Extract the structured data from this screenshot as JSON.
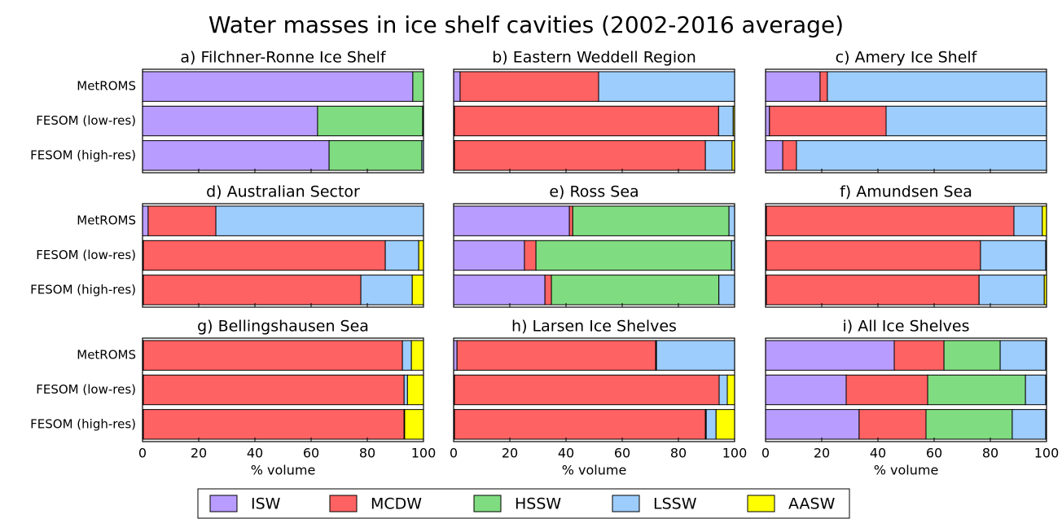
{
  "title": "Water masses in ice shelf cavities (2002-2016 average)",
  "categories": [
    "MetROMS",
    "FESOM (low-res)",
    "FESOM (high-res)"
  ],
  "x_label": "% volume",
  "xlim": [
    0,
    100
  ],
  "xticks": [
    0,
    20,
    40,
    60,
    80,
    100
  ],
  "legend": [
    {
      "name": "ISW",
      "color": "#b99cff"
    },
    {
      "name": "MCDW",
      "color": "#ff6262"
    },
    {
      "name": "HSSW",
      "color": "#80dc80"
    },
    {
      "name": "LSSW",
      "color": "#9dcdfd"
    },
    {
      "name": "AASW",
      "color": "#ffff00"
    }
  ],
  "chart_data": [
    {
      "type": "bar",
      "title": "a) Filchner-Ronne Ice Shelf",
      "values": [
        [
          96.2,
          0,
          3.8,
          0,
          0
        ],
        [
          62.3,
          0,
          37.4,
          0.3,
          0
        ],
        [
          66.4,
          0,
          33,
          0.6,
          0
        ]
      ]
    },
    {
      "type": "bar",
      "title": "b) Eastern Weddell Region",
      "values": [
        [
          2.3,
          49.3,
          0,
          48.4,
          0
        ],
        [
          0.3,
          94,
          0,
          5.2,
          0.5
        ],
        [
          0.3,
          89.3,
          0,
          9.5,
          0.9
        ]
      ]
    },
    {
      "type": "bar",
      "title": "c) Amery Ice Shelf",
      "values": [
        [
          19.4,
          2.6,
          0,
          78,
          0
        ],
        [
          1.4,
          41.5,
          0,
          57.1,
          0
        ],
        [
          6.1,
          4.9,
          0,
          89,
          0
        ]
      ]
    },
    {
      "type": "bar",
      "title": "d) Australian Sector",
      "values": [
        [
          2,
          24.1,
          0,
          73.9,
          0
        ],
        [
          0.3,
          86.1,
          0,
          11.9,
          1.7
        ],
        [
          0.3,
          77.4,
          0,
          18.3,
          4
        ]
      ]
    },
    {
      "type": "bar",
      "title": "e) Ross Sea",
      "values": [
        [
          41.2,
          1.2,
          55.6,
          2,
          0
        ],
        [
          25.2,
          4.1,
          69.6,
          1.1,
          0
        ],
        [
          32.5,
          2.3,
          59.6,
          5.6,
          0
        ]
      ]
    },
    {
      "type": "bar",
      "title": "f) Amundsen Sea",
      "values": [
        [
          0.3,
          88.1,
          0,
          10.1,
          1.5
        ],
        [
          0.3,
          76.2,
          0,
          23.2,
          0.3
        ],
        [
          0.3,
          75.7,
          0,
          23.2,
          0.8
        ]
      ]
    },
    {
      "type": "bar",
      "title": "g) Bellingshausen Sea",
      "values": [
        [
          0.3,
          92.2,
          0,
          3.2,
          4.3
        ],
        [
          0.3,
          92.8,
          0,
          1.2,
          5.7
        ],
        [
          0.3,
          92.8,
          0,
          0.2,
          6.7
        ]
      ]
    },
    {
      "type": "bar",
      "title": "h) Larsen Ice Shelves",
      "values": [
        [
          1.2,
          70.7,
          0.3,
          27.8,
          0
        ],
        [
          0.3,
          94.2,
          0,
          2.9,
          2.6
        ],
        [
          0.3,
          89.3,
          0.3,
          3.5,
          6.6
        ]
      ]
    },
    {
      "type": "bar",
      "title": "i) All Ice Shelves",
      "values": [
        [
          45.8,
          17.7,
          20,
          16.2,
          0.3
        ],
        [
          28.7,
          29,
          34.8,
          7.2,
          0.3
        ],
        [
          33.3,
          23.8,
          30.7,
          11.9,
          0.3
        ]
      ]
    }
  ]
}
